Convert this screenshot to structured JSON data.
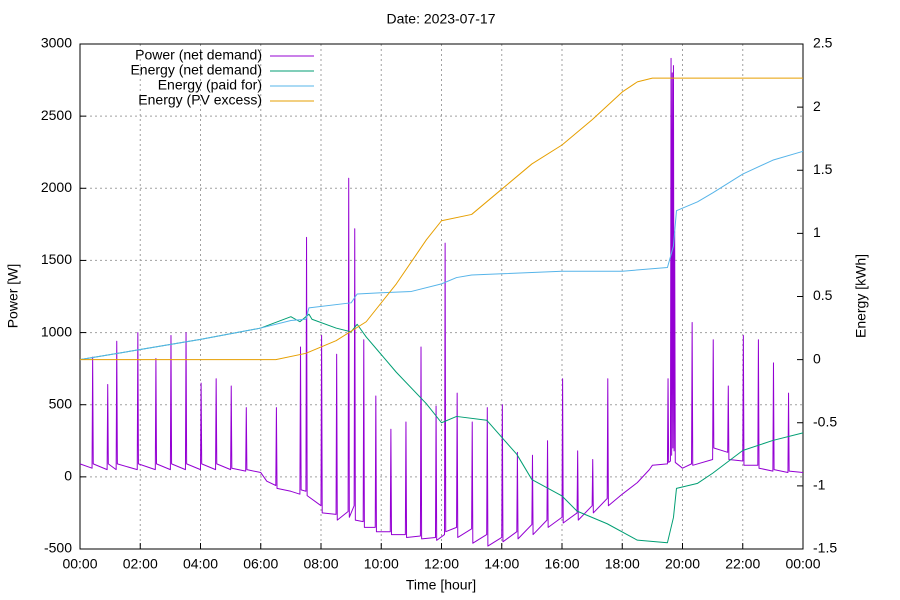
{
  "chart_data": {
    "type": "line",
    "title": "Date: 2023-07-17",
    "xlabel": "Time [hour]",
    "ylabel": "Power [W]",
    "y2label": "Energy [kWh]",
    "grid": true,
    "legend": "upper-left",
    "xlim": [
      0,
      24
    ],
    "xticks": [
      {
        "value": 0,
        "label": "00:00"
      },
      {
        "value": 2,
        "label": "02:00"
      },
      {
        "value": 4,
        "label": "04:00"
      },
      {
        "value": 6,
        "label": "06:00"
      },
      {
        "value": 8,
        "label": "08:00"
      },
      {
        "value": 10,
        "label": "10:00"
      },
      {
        "value": 12,
        "label": "12:00"
      },
      {
        "value": 14,
        "label": "14:00"
      },
      {
        "value": 16,
        "label": "16:00"
      },
      {
        "value": 18,
        "label": "18:00"
      },
      {
        "value": 20,
        "label": "20:00"
      },
      {
        "value": 22,
        "label": "22:00"
      },
      {
        "value": 24,
        "label": "00:00"
      }
    ],
    "ylim": [
      -500,
      3000
    ],
    "yticks": [
      -500,
      0,
      500,
      1000,
      1500,
      2000,
      2500,
      3000
    ],
    "y2lim": [
      -1.5,
      2.5
    ],
    "y2ticks": [
      -1.5,
      -1,
      -0.5,
      0,
      0.5,
      1,
      1.5,
      2,
      2.5
    ],
    "series": [
      {
        "name": "Power (net demand)",
        "color": "#9400d3",
        "axis": "y",
        "x": [
          0,
          0.4,
          0.42,
          0.44,
          0.9,
          0.92,
          0.94,
          1.2,
          1.22,
          1.24,
          1.9,
          1.92,
          1.94,
          2.5,
          2.52,
          2.54,
          3.0,
          3.02,
          3.04,
          3.5,
          3.52,
          3.54,
          4.0,
          4.02,
          4.04,
          4.5,
          4.52,
          4.54,
          5.0,
          5.02,
          5.04,
          5.5,
          5.52,
          5.54,
          6.0,
          6.2,
          6.5,
          6.52,
          6.54,
          7.0,
          7.3,
          7.32,
          7.34,
          7.5,
          7.52,
          7.54,
          8.0,
          8.02,
          8.04,
          8.5,
          8.52,
          8.54,
          8.9,
          8.92,
          8.94,
          9.1,
          9.12,
          9.14,
          9.4,
          9.42,
          9.44,
          9.8,
          9.82,
          9.84,
          10.3,
          10.32,
          10.34,
          10.8,
          10.82,
          10.84,
          11.3,
          11.32,
          11.34,
          11.8,
          11.82,
          11.84,
          12.1,
          12.12,
          12.14,
          12.5,
          12.52,
          12.54,
          13.0,
          13.02,
          13.04,
          13.5,
          13.52,
          13.54,
          14.0,
          14.02,
          14.04,
          14.5,
          14.52,
          14.54,
          15.0,
          15.02,
          15.04,
          15.5,
          15.52,
          15.54,
          16.0,
          16.02,
          16.04,
          16.5,
          16.52,
          16.54,
          17.0,
          17.02,
          17.04,
          17.5,
          17.52,
          17.54,
          18.0,
          18.5,
          18.9,
          19.0,
          19.5,
          19.52,
          19.54,
          19.6,
          19.62,
          19.64,
          19.66,
          19.68,
          19.7,
          19.72,
          19.74,
          19.76,
          20.0,
          20.3,
          20.32,
          20.34,
          21.0,
          21.02,
          21.04,
          21.5,
          21.52,
          21.54,
          22.0,
          22.02,
          22.04,
          22.5,
          22.52,
          22.54,
          23.0,
          23.02,
          23.04,
          23.5,
          23.52,
          23.54,
          24.0
        ],
        "values": [
          90,
          60,
          830,
          90,
          50,
          640,
          90,
          50,
          940,
          90,
          50,
          1000,
          90,
          50,
          820,
          90,
          50,
          980,
          90,
          50,
          1000,
          90,
          50,
          650,
          90,
          50,
          680,
          90,
          50,
          630,
          60,
          40,
          480,
          50,
          30,
          -30,
          -60,
          480,
          -80,
          -100,
          -120,
          900,
          -90,
          -100,
          1660,
          -130,
          -200,
          980,
          -250,
          -260,
          850,
          -300,
          -240,
          2070,
          -280,
          -200,
          1720,
          -300,
          -310,
          950,
          -350,
          -350,
          560,
          -380,
          -380,
          330,
          -400,
          -400,
          380,
          -420,
          -410,
          900,
          -430,
          -420,
          490,
          -440,
          -400,
          1620,
          -380,
          -350,
          580,
          -420,
          -360,
          380,
          -460,
          -400,
          480,
          -480,
          -420,
          500,
          -450,
          -380,
          170,
          -430,
          -330,
          150,
          -400,
          -300,
          250,
          -350,
          -280,
          680,
          -320,
          -250,
          180,
          -300,
          -200,
          120,
          -250,
          -150,
          680,
          -200,
          -120,
          -40,
          50,
          80,
          90,
          680,
          100,
          110,
          2900,
          150,
          2800,
          200,
          2850,
          180,
          1700,
          100,
          60,
          90,
          1070,
          80,
          120,
          950,
          200,
          170,
          630,
          120,
          110,
          980,
          80,
          80,
          950,
          60,
          40,
          790,
          50,
          30,
          580,
          40,
          30
        ]
      },
      {
        "name": "Energy (net demand)",
        "color": "#009e73",
        "axis": "y2",
        "x": [
          0,
          2,
          4,
          6,
          7,
          7.3,
          7.6,
          7.7,
          8.5,
          9.0,
          9.2,
          9.5,
          10.5,
          11.5,
          12.0,
          12.5,
          13.5,
          14.5,
          15.0,
          16.0,
          16.5,
          17.5,
          18.5,
          19.5,
          19.7,
          19.8,
          20.5,
          21.0,
          22.0,
          23.0,
          24.0
        ],
        "values": [
          0,
          0.08,
          0.16,
          0.25,
          0.34,
          0.3,
          0.36,
          0.32,
          0.25,
          0.22,
          0.28,
          0.18,
          -0.1,
          -0.35,
          -0.5,
          -0.45,
          -0.48,
          -0.75,
          -0.95,
          -1.08,
          -1.2,
          -1.3,
          -1.43,
          -1.45,
          -1.25,
          -1.02,
          -0.98,
          -0.9,
          -0.72,
          -0.64,
          -0.58
        ]
      },
      {
        "name": "Energy (paid for)",
        "color": "#56b4e9",
        "axis": "y2",
        "x": [
          0,
          2,
          4,
          6,
          7,
          7.5,
          7.6,
          9.0,
          9.2,
          10.0,
          11.0,
          12.0,
          12.5,
          13.0,
          14.0,
          16.0,
          18.0,
          19.5,
          19.7,
          19.8,
          20.5,
          21.0,
          22.0,
          23.0,
          24.0
        ],
        "values": [
          0,
          0.08,
          0.16,
          0.25,
          0.31,
          0.32,
          0.41,
          0.45,
          0.52,
          0.53,
          0.54,
          0.6,
          0.65,
          0.67,
          0.68,
          0.7,
          0.7,
          0.73,
          0.9,
          1.18,
          1.25,
          1.32,
          1.47,
          1.58,
          1.65
        ]
      },
      {
        "name": "Energy (PV excess)",
        "color": "#e69f00",
        "axis": "y2",
        "x": [
          0,
          6,
          6.5,
          7.5,
          8.5,
          9.5,
          10.5,
          11.5,
          12.0,
          13.0,
          14.0,
          15.0,
          16.0,
          16.5,
          17.0,
          18.0,
          18.5,
          19.0,
          24.0
        ],
        "values": [
          0,
          0,
          0,
          0.05,
          0.15,
          0.3,
          0.6,
          0.95,
          1.1,
          1.15,
          1.35,
          1.55,
          1.7,
          1.8,
          1.9,
          2.12,
          2.2,
          2.23,
          2.23
        ]
      }
    ]
  }
}
